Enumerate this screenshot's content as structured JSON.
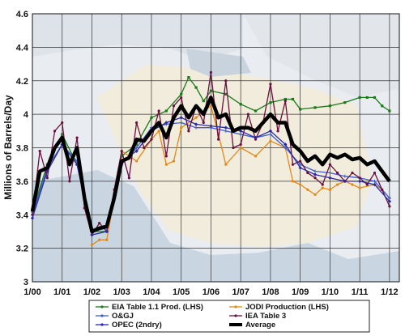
{
  "chart_data": {
    "type": "line",
    "title": "",
    "xlabel": "",
    "ylabel": "Millions of Barrels/Day",
    "xlim": [
      2000.0,
      2012.33
    ],
    "ylim": [
      3.0,
      4.6
    ],
    "x_ticks": [
      {
        "value": 2000.0,
        "label": "1/00"
      },
      {
        "value": 2001.0,
        "label": "1/01"
      },
      {
        "value": 2002.0,
        "label": "1/02"
      },
      {
        "value": 2003.0,
        "label": "1/03"
      },
      {
        "value": 2004.0,
        "label": "1/04"
      },
      {
        "value": 2005.0,
        "label": "1/05"
      },
      {
        "value": 2006.0,
        "label": "1/06"
      },
      {
        "value": 2007.0,
        "label": "1/07"
      },
      {
        "value": 2008.0,
        "label": "1/08"
      },
      {
        "value": 2009.0,
        "label": "1/09"
      },
      {
        "value": 2010.0,
        "label": "1/10"
      },
      {
        "value": 2011.0,
        "label": "1/11"
      },
      {
        "value": 2012.0,
        "label": "1/12"
      }
    ],
    "y_ticks": [
      3,
      3.2,
      3.4,
      3.6,
      3.8,
      4,
      4.2,
      4.4,
      4.6
    ],
    "grid": true,
    "legend_position": "bottom",
    "background": "faded map of Iran",
    "series": [
      {
        "name": "EIA Table 1.1 Prod. (LHS)",
        "color": "#1a7a1a",
        "marker": "square",
        "x": [
          2000.0,
          2000.5,
          2001.0,
          2001.5,
          2002.0,
          2002.5,
          2003.0,
          2003.5,
          2004.0,
          2004.5,
          2005.0,
          2005.25,
          2005.5,
          2005.75,
          2006.0,
          2006.5,
          2007.0,
          2007.5,
          2008.0,
          2008.5,
          2008.75,
          2009.0,
          2009.5,
          2010.0,
          2010.5,
          2011.0,
          2011.25,
          2011.5,
          2011.75,
          2012.0
        ],
        "y": [
          3.42,
          3.7,
          3.88,
          3.7,
          3.3,
          3.3,
          3.75,
          3.82,
          3.98,
          4.02,
          4.12,
          4.22,
          4.16,
          4.08,
          4.14,
          4.12,
          4.06,
          4.02,
          4.07,
          4.09,
          4.09,
          4.03,
          4.04,
          4.05,
          4.07,
          4.1,
          4.1,
          4.1,
          4.05,
          4.02
        ]
      },
      {
        "name": "JODI Production (LHS)",
        "color": "#e08a1a",
        "marker": "circle",
        "x": [
          2002.0,
          2002.25,
          2002.5,
          2002.75,
          2003.0,
          2003.5,
          2004.0,
          2004.25,
          2004.5,
          2004.75,
          2005.0,
          2005.5,
          2006.0,
          2006.25,
          2006.5,
          2007.0,
          2007.5,
          2008.0,
          2008.5,
          2008.75,
          2009.0,
          2009.25,
          2009.5,
          2009.75,
          2010.0,
          2010.25,
          2010.5,
          2010.75,
          2011.0,
          2011.5,
          2011.75,
          2012.0
        ],
        "y": [
          3.22,
          3.25,
          3.25,
          3.5,
          3.78,
          3.72,
          3.85,
          3.9,
          3.7,
          3.72,
          3.92,
          3.98,
          4.05,
          3.88,
          3.7,
          3.8,
          3.75,
          3.84,
          3.8,
          3.6,
          3.58,
          3.55,
          3.52,
          3.56,
          3.55,
          3.58,
          3.6,
          3.58,
          3.56,
          3.58,
          3.55,
          3.5
        ]
      },
      {
        "name": "O&GJ",
        "color": "#3a5fcf",
        "marker": "plus",
        "x": [
          2000.0,
          2000.5,
          2001.0,
          2001.5,
          2002.0,
          2002.5,
          2003.0,
          2003.5,
          2004.0,
          2004.5,
          2005.0,
          2005.5,
          2006.0,
          2006.5,
          2007.0,
          2007.5,
          2008.0,
          2008.5,
          2009.0,
          2009.5,
          2010.0,
          2010.5,
          2011.0,
          2011.5,
          2012.0
        ],
        "y": [
          3.4,
          3.68,
          3.82,
          3.72,
          3.3,
          3.32,
          3.7,
          3.8,
          3.92,
          3.94,
          3.95,
          3.92,
          3.92,
          3.9,
          3.88,
          3.86,
          3.88,
          3.8,
          3.7,
          3.66,
          3.65,
          3.63,
          3.62,
          3.6,
          3.5
        ]
      },
      {
        "name": "IEA Table 3",
        "color": "#6a1040",
        "marker": "circle",
        "x": [
          2000.0,
          2000.25,
          2000.5,
          2000.75,
          2001.0,
          2001.25,
          2001.5,
          2001.75,
          2002.0,
          2002.25,
          2002.5,
          2002.75,
          2003.0,
          2003.25,
          2003.5,
          2003.75,
          2004.0,
          2004.25,
          2004.5,
          2004.75,
          2005.0,
          2005.25,
          2005.5,
          2005.75,
          2006.0,
          2006.25,
          2006.5,
          2006.75,
          2007.0,
          2007.25,
          2007.5,
          2007.75,
          2008.0,
          2008.25,
          2008.5,
          2008.75,
          2009.0,
          2009.25,
          2009.5,
          2009.75,
          2010.0,
          2010.25,
          2010.5,
          2010.75,
          2011.0,
          2011.25,
          2011.5,
          2011.75,
          2012.0
        ],
        "y": [
          3.4,
          3.78,
          3.62,
          3.9,
          3.95,
          3.6,
          3.86,
          3.44,
          3.28,
          3.35,
          3.3,
          3.55,
          3.78,
          3.62,
          3.95,
          3.8,
          3.85,
          4.02,
          3.75,
          4.05,
          4.1,
          3.9,
          4.05,
          3.95,
          4.25,
          3.85,
          4.2,
          3.8,
          3.82,
          4.0,
          3.85,
          3.95,
          4.18,
          3.9,
          4.08,
          3.7,
          3.72,
          3.65,
          3.62,
          3.58,
          3.7,
          3.65,
          3.6,
          3.65,
          3.62,
          3.58,
          3.65,
          3.55,
          3.45
        ]
      },
      {
        "name": "OPEC (2ndry)",
        "color": "#2a2aa0",
        "marker": "diamond",
        "x": [
          2000.0,
          2000.5,
          2001.0,
          2001.5,
          2002.0,
          2002.5,
          2003.0,
          2003.5,
          2004.0,
          2004.5,
          2005.0,
          2005.5,
          2006.0,
          2006.5,
          2007.0,
          2007.5,
          2008.0,
          2008.5,
          2009.0,
          2009.5,
          2010.0,
          2010.5,
          2011.0,
          2011.5,
          2012.0
        ],
        "y": [
          3.38,
          3.66,
          3.82,
          3.7,
          3.28,
          3.3,
          3.72,
          3.78,
          3.9,
          3.95,
          3.98,
          3.94,
          3.93,
          3.92,
          3.9,
          3.86,
          3.9,
          3.82,
          3.68,
          3.64,
          3.62,
          3.6,
          3.6,
          3.58,
          3.48
        ]
      },
      {
        "name": "Average",
        "color": "#000000",
        "marker": "none",
        "x": [
          2000.0,
          2000.25,
          2000.5,
          2000.75,
          2001.0,
          2001.25,
          2001.5,
          2001.75,
          2002.0,
          2002.25,
          2002.5,
          2002.75,
          2003.0,
          2003.25,
          2003.5,
          2003.75,
          2004.0,
          2004.25,
          2004.5,
          2004.75,
          2005.0,
          2005.25,
          2005.5,
          2005.75,
          2006.0,
          2006.25,
          2006.5,
          2006.75,
          2007.0,
          2007.25,
          2007.5,
          2007.75,
          2008.0,
          2008.25,
          2008.5,
          2008.75,
          2009.0,
          2009.25,
          2009.5,
          2009.75,
          2010.0,
          2010.25,
          2010.5,
          2010.75,
          2011.0,
          2011.25,
          2011.5,
          2011.75,
          2012.0
        ],
        "y": [
          3.42,
          3.66,
          3.68,
          3.8,
          3.86,
          3.7,
          3.8,
          3.5,
          3.3,
          3.32,
          3.33,
          3.5,
          3.72,
          3.74,
          3.85,
          3.84,
          3.9,
          3.95,
          3.86,
          3.98,
          4.05,
          3.98,
          4.05,
          4.0,
          4.1,
          3.98,
          4.0,
          3.9,
          3.92,
          3.92,
          3.9,
          3.95,
          4.0,
          3.95,
          3.95,
          3.82,
          3.78,
          3.72,
          3.75,
          3.7,
          3.76,
          3.74,
          3.76,
          3.73,
          3.74,
          3.7,
          3.72,
          3.66,
          3.6
        ]
      }
    ]
  }
}
